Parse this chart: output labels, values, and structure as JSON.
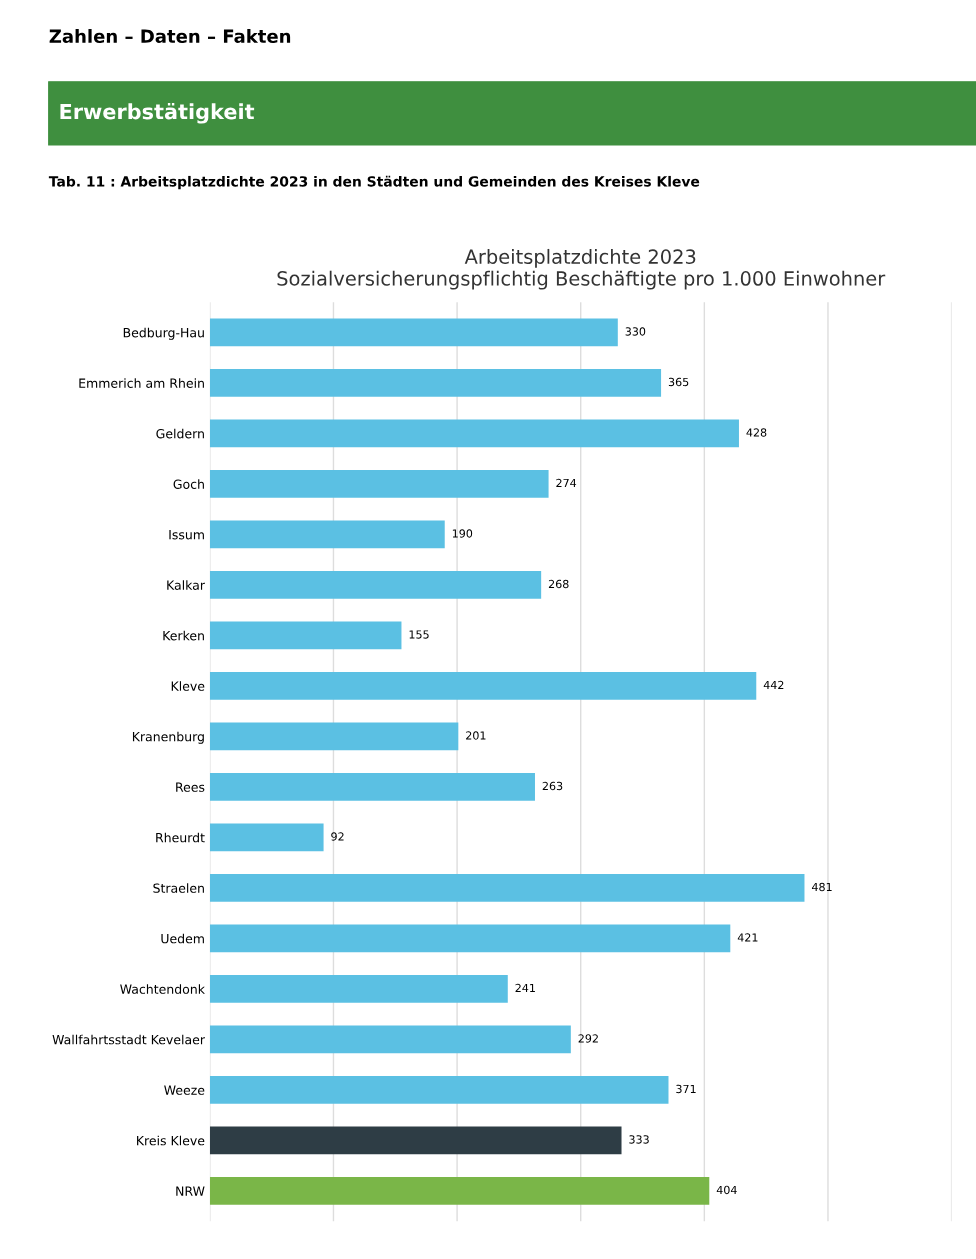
{
  "chart_data": {
    "type": "bar",
    "orientation": "horizontal",
    "title": "Arbeitsplatzdichte 2023",
    "subtitle": "Sozialversicherungspflichtig Beschäftigte pro 1.000 Einwohner",
    "annotations": [
      "Zahlen – Daten – Fakten",
      "Erwerbstätigkeit",
      "Tab. 11 : Arbeitsplatzdichte 2023 in den Städten und Gemeinden des Kreises Kleve"
    ],
    "categories": [
      "Bedburg-Hau",
      "Emmerich am Rhein",
      "Geldern",
      "Goch",
      "Issum",
      "Kalkar",
      "Kerken",
      "Kleve",
      "Kranenburg",
      "Rees",
      "Rheurdt",
      "Straelen",
      "Uedem",
      "Wachtendonk",
      "Wallfahrtsstadt Kevelaer",
      "Weeze",
      "Kreis Kleve",
      "NRW"
    ],
    "values": [
      330,
      365,
      428,
      274,
      190,
      268,
      155,
      442,
      201,
      263,
      92,
      481,
      421,
      241,
      292,
      371,
      333,
      404
    ],
    "colors": [
      "#5bc0e3",
      "#5bc0e3",
      "#5bc0e3",
      "#5bc0e3",
      "#5bc0e3",
      "#5bc0e3",
      "#5bc0e3",
      "#5bc0e3",
      "#5bc0e3",
      "#5bc0e3",
      "#5bc0e3",
      "#5bc0e3",
      "#5bc0e3",
      "#5bc0e3",
      "#5bc0e3",
      "#5bc0e3",
      "#2e3d45",
      "#7ab648"
    ],
    "xlim": [
      0,
      600
    ],
    "xticks": [
      {
        "value": 0,
        "label": null
      },
      {
        "value": 100,
        "label": null
      },
      {
        "value": 200,
        "label": null
      },
      {
        "value": 300,
        "label": null
      },
      {
        "value": 400,
        "label": null
      },
      {
        "value": 500,
        "label": null
      },
      {
        "value": 600,
        "label": null
      }
    ],
    "tick_labels": "y",
    "grid": "x",
    "data_labels": true,
    "legend": false
  }
}
